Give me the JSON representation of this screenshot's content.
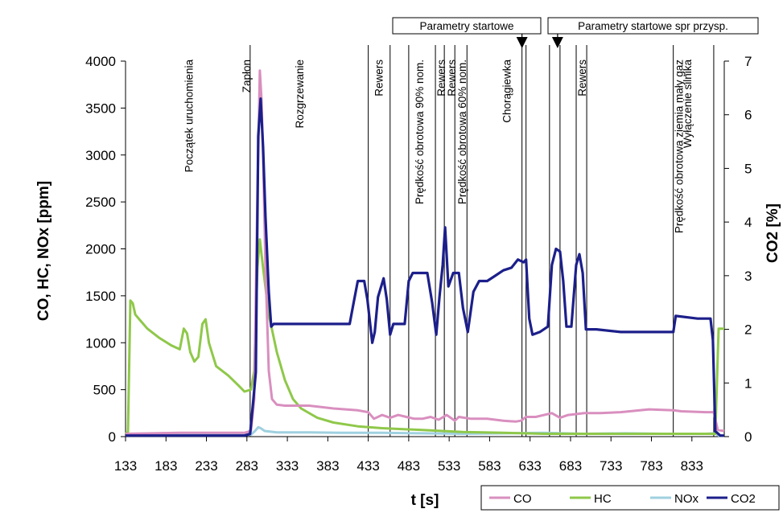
{
  "chart_data": {
    "type": "line",
    "title": "",
    "xlabel": "t [s]",
    "ylabel_left": "CO, HC, NOx [ppm]",
    "ylabel_right": "CO2 [%]",
    "xlim": [
      133,
      873
    ],
    "ylim_left": [
      0,
      4000
    ],
    "ylim_right": [
      0,
      7
    ],
    "x_ticks": [
      133,
      183,
      233,
      283,
      333,
      383,
      433,
      483,
      533,
      583,
      633,
      683,
      733,
      783,
      833
    ],
    "y_ticks_left": [
      0,
      500,
      1000,
      1500,
      2000,
      2500,
      3000,
      3500,
      4000
    ],
    "y_ticks_right": [
      0,
      1,
      2,
      3,
      4,
      5,
      6,
      7
    ],
    "grid": false,
    "legend_position": "bottom-right",
    "series": [
      {
        "name": "CO",
        "axis": "left",
        "color": "#d98fbf",
        "points": [
          [
            133,
            30
          ],
          [
            200,
            40
          ],
          [
            250,
            40
          ],
          [
            280,
            40
          ],
          [
            288,
            60
          ],
          [
            292,
            400
          ],
          [
            296,
            2600
          ],
          [
            299,
            3900
          ],
          [
            301,
            3600
          ],
          [
            303,
            3000
          ],
          [
            306,
            1800
          ],
          [
            310,
            700
          ],
          [
            314,
            400
          ],
          [
            320,
            340
          ],
          [
            330,
            330
          ],
          [
            360,
            330
          ],
          [
            390,
            300
          ],
          [
            420,
            280
          ],
          [
            433,
            260
          ],
          [
            440,
            190
          ],
          [
            450,
            230
          ],
          [
            460,
            200
          ],
          [
            470,
            230
          ],
          [
            480,
            210
          ],
          [
            490,
            190
          ],
          [
            500,
            190
          ],
          [
            510,
            210
          ],
          [
            520,
            180
          ],
          [
            530,
            230
          ],
          [
            540,
            170
          ],
          [
            545,
            210
          ],
          [
            560,
            190
          ],
          [
            580,
            190
          ],
          [
            600,
            170
          ],
          [
            615,
            160
          ],
          [
            622,
            170
          ],
          [
            628,
            210
          ],
          [
            640,
            210
          ],
          [
            660,
            250
          ],
          [
            670,
            200
          ],
          [
            680,
            230
          ],
          [
            700,
            250
          ],
          [
            720,
            250
          ],
          [
            745,
            260
          ],
          [
            780,
            290
          ],
          [
            810,
            280
          ],
          [
            820,
            270
          ],
          [
            850,
            260
          ],
          [
            860,
            260
          ],
          [
            865,
            70
          ],
          [
            873,
            60
          ]
        ]
      },
      {
        "name": "HC",
        "axis": "left",
        "color": "#8fc84a",
        "points": [
          [
            133,
            30
          ],
          [
            136,
            50
          ],
          [
            139,
            1450
          ],
          [
            142,
            1420
          ],
          [
            145,
            1300
          ],
          [
            150,
            1250
          ],
          [
            160,
            1150
          ],
          [
            175,
            1050
          ],
          [
            190,
            970
          ],
          [
            200,
            930
          ],
          [
            205,
            1150
          ],
          [
            209,
            1100
          ],
          [
            213,
            900
          ],
          [
            218,
            800
          ],
          [
            223,
            850
          ],
          [
            228,
            1200
          ],
          [
            232,
            1250
          ],
          [
            236,
            1000
          ],
          [
            245,
            750
          ],
          [
            260,
            650
          ],
          [
            272,
            550
          ],
          [
            280,
            480
          ],
          [
            288,
            500
          ],
          [
            292,
            700
          ],
          [
            296,
            1800
          ],
          [
            299,
            2100
          ],
          [
            303,
            1800
          ],
          [
            310,
            1300
          ],
          [
            320,
            900
          ],
          [
            330,
            600
          ],
          [
            340,
            400
          ],
          [
            350,
            300
          ],
          [
            370,
            200
          ],
          [
            390,
            150
          ],
          [
            420,
            110
          ],
          [
            450,
            90
          ],
          [
            500,
            70
          ],
          [
            550,
            50
          ],
          [
            600,
            40
          ],
          [
            650,
            30
          ],
          [
            700,
            30
          ],
          [
            750,
            30
          ],
          [
            800,
            30
          ],
          [
            850,
            30
          ],
          [
            862,
            30
          ],
          [
            866,
            1150
          ],
          [
            873,
            1150
          ]
        ]
      },
      {
        "name": "NOx",
        "axis": "left",
        "color": "#9fd0df",
        "points": [
          [
            133,
            20
          ],
          [
            280,
            20
          ],
          [
            288,
            20
          ],
          [
            293,
            60
          ],
          [
            297,
            100
          ],
          [
            300,
            90
          ],
          [
            305,
            60
          ],
          [
            320,
            45
          ],
          [
            360,
            45
          ],
          [
            400,
            40
          ],
          [
            450,
            40
          ],
          [
            500,
            35
          ],
          [
            550,
            30
          ],
          [
            600,
            35
          ],
          [
            650,
            40
          ],
          [
            700,
            30
          ],
          [
            750,
            35
          ],
          [
            800,
            30
          ],
          [
            850,
            30
          ],
          [
            862,
            35
          ],
          [
            866,
            10
          ],
          [
            873,
            10
          ]
        ]
      },
      {
        "name": "CO2",
        "axis": "right",
        "color": "#1c1f8a",
        "points": [
          [
            133,
            0.02
          ],
          [
            280,
            0.02
          ],
          [
            287,
            0.05
          ],
          [
            291,
            0.7
          ],
          [
            294,
            1.2
          ],
          [
            297,
            5.6
          ],
          [
            300,
            6.3
          ],
          [
            303,
            5.4
          ],
          [
            306,
            4.1
          ],
          [
            310,
            2.7
          ],
          [
            313,
            2.05
          ],
          [
            316,
            2.1
          ],
          [
            330,
            2.1
          ],
          [
            380,
            2.1
          ],
          [
            410,
            2.1
          ],
          [
            415,
            2.5
          ],
          [
            420,
            2.9
          ],
          [
            428,
            2.9
          ],
          [
            432,
            2.55
          ],
          [
            438,
            1.75
          ],
          [
            441,
            1.95
          ],
          [
            445,
            2.6
          ],
          [
            452,
            2.95
          ],
          [
            456,
            2.55
          ],
          [
            460,
            1.9
          ],
          [
            464,
            2.1
          ],
          [
            472,
            2.1
          ],
          [
            478,
            2.1
          ],
          [
            483,
            2.9
          ],
          [
            488,
            3.05
          ],
          [
            496,
            3.05
          ],
          [
            506,
            3.05
          ],
          [
            512,
            2.5
          ],
          [
            517,
            1.9
          ],
          [
            521,
            2.6
          ],
          [
            525,
            3.2
          ],
          [
            528,
            3.9
          ],
          [
            532,
            2.8
          ],
          [
            538,
            3.05
          ],
          [
            545,
            3.05
          ],
          [
            550,
            2.4
          ],
          [
            556,
            1.95
          ],
          [
            563,
            2.7
          ],
          [
            570,
            2.9
          ],
          [
            580,
            2.9
          ],
          [
            590,
            3.0
          ],
          [
            600,
            3.1
          ],
          [
            610,
            3.15
          ],
          [
            618,
            3.3
          ],
          [
            625,
            3.25
          ],
          [
            628,
            3.3
          ],
          [
            632,
            2.2
          ],
          [
            636,
            1.9
          ],
          [
            645,
            1.95
          ],
          [
            655,
            2.05
          ],
          [
            660,
            3.2
          ],
          [
            665,
            3.5
          ],
          [
            670,
            3.45
          ],
          [
            674,
            2.9
          ],
          [
            678,
            2.05
          ],
          [
            684,
            2.05
          ],
          [
            690,
            3.2
          ],
          [
            694,
            3.4
          ],
          [
            698,
            3.05
          ],
          [
            702,
            2.0
          ],
          [
            715,
            2.0
          ],
          [
            745,
            1.95
          ],
          [
            790,
            1.95
          ],
          [
            810,
            1.95
          ],
          [
            813,
            2.25
          ],
          [
            840,
            2.2
          ],
          [
            856,
            2.2
          ],
          [
            859,
            1.8
          ],
          [
            862,
            0.1
          ],
          [
            868,
            0.02
          ],
          [
            873,
            0.02
          ]
        ]
      }
    ],
    "annotations": {
      "vertical_lines_x": [
        287,
        433,
        460,
        483,
        516,
        527,
        540,
        555,
        623,
        628,
        657,
        670,
        690,
        703,
        810,
        860
      ],
      "labels": [
        {
          "text": "Początek uruchomienia",
          "x": 211,
          "color": "#000000"
        },
        {
          "text": "Zapłon",
          "x": 282,
          "color": "#d0152b"
        },
        {
          "text": "Rozgrzewanie",
          "x": 348,
          "color": "#000000"
        },
        {
          "text": "Rewers",
          "x": 446,
          "color": "#000000"
        },
        {
          "text": "Prędkość obrotowa 90% nom.",
          "x": 496,
          "color": "#000000"
        },
        {
          "text": "Rewers",
          "x": 523,
          "color": "#000000"
        },
        {
          "text": "Rewers",
          "x": 536,
          "color": "#000000"
        },
        {
          "text": "Prędkość obrotowa 60% nom.",
          "x": 549,
          "color": "#000000"
        },
        {
          "text": "Chorągiewka",
          "x": 604,
          "color": "#000000"
        },
        {
          "text": "Rewers",
          "x": 697,
          "color": "#000000"
        },
        {
          "text": "Prędkość obrotowa ziemia mały gaz",
          "x": 817,
          "color": "#000000"
        },
        {
          "text": "Wyłączenie silnika",
          "x": 827,
          "color": "#d0152b"
        }
      ],
      "boxes": [
        {
          "text": "Parametry startowe",
          "arrow_x": 623
        },
        {
          "text": "Parametry startowe spr przysp.",
          "arrow_x": 667
        }
      ]
    }
  }
}
